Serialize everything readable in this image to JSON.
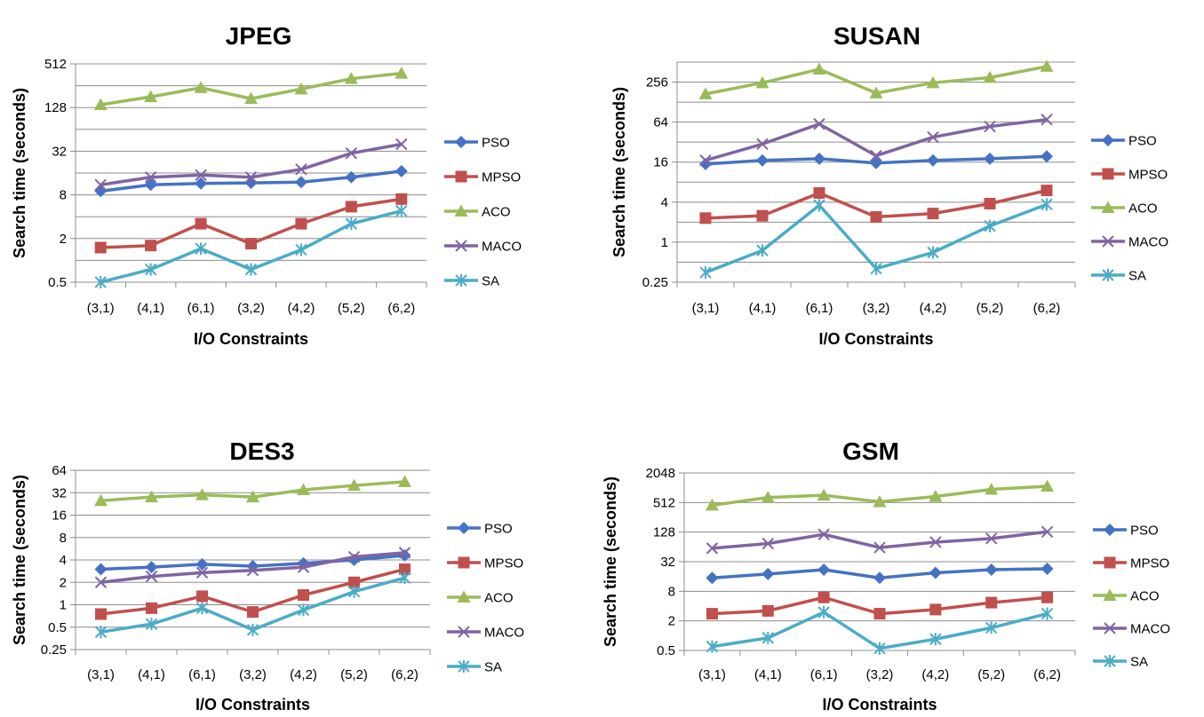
{
  "chart_data": [
    {
      "type": "line",
      "title": "JPEG",
      "xlabel": "I/O Constraints",
      "ylabel": "Search time (seconds)",
      "yscale": "log2",
      "ylim": [
        0.5,
        512
      ],
      "yticks": [
        "0.5",
        "2",
        "8",
        "32",
        "128",
        "512"
      ],
      "yticks_values": [
        0.5,
        2,
        8,
        32,
        128,
        512
      ],
      "minor_gridlines": [
        1,
        4,
        16,
        64,
        256
      ],
      "grid": true,
      "legend": "right",
      "categories": [
        "(3,1)",
        "(4,1)",
        "(6,1)",
        "(3,2)",
        "(4,2)",
        "(5,2)",
        "(6,2)"
      ],
      "series": [
        {
          "name": "PSO",
          "values": [
            9,
            11,
            11.5,
            11.7,
            12,
            14,
            17
          ]
        },
        {
          "name": "MPSO",
          "values": [
            1.5,
            1.6,
            3.2,
            1.7,
            3.2,
            5.5,
            7
          ]
        },
        {
          "name": "ACO",
          "values": [
            140,
            180,
            240,
            170,
            230,
            320,
            380
          ]
        },
        {
          "name": "MACO",
          "values": [
            11,
            14,
            15,
            14,
            18,
            30,
            40
          ]
        },
        {
          "name": "SA",
          "values": [
            0.5,
            0.75,
            1.45,
            0.75,
            1.4,
            3.2,
            4.8
          ]
        }
      ]
    },
    {
      "type": "line",
      "title": "SUSAN",
      "xlabel": "I/O Constraints",
      "ylabel": "Search time (seconds)",
      "yscale": "log2",
      "ylim": [
        0.25,
        512
      ],
      "yticks": [
        "0.25",
        "1",
        "4",
        "16",
        "64",
        "256"
      ],
      "yticks_values": [
        0.25,
        1,
        4,
        16,
        64,
        256
      ],
      "minor_gridlines": [
        0.5,
        2,
        8,
        32,
        128,
        512
      ],
      "grid": true,
      "legend": "right",
      "categories": [
        "(3,1)",
        "(4,1)",
        "(6,1)",
        "(3,2)",
        "(4,2)",
        "(5,2)",
        "(6,2)"
      ],
      "series": [
        {
          "name": "PSO",
          "values": [
            15,
            17,
            18,
            15.5,
            17,
            18,
            19.5
          ]
        },
        {
          "name": "MPSO",
          "values": [
            2.3,
            2.5,
            5.5,
            2.4,
            2.7,
            3.8,
            6
          ]
        },
        {
          "name": "ACO",
          "values": [
            170,
            250,
            400,
            175,
            250,
            300,
            440
          ]
        },
        {
          "name": "MACO",
          "values": [
            17,
            30,
            60,
            20,
            38,
            55,
            70
          ]
        },
        {
          "name": "SA",
          "values": [
            0.35,
            0.75,
            3.6,
            0.4,
            0.7,
            1.75,
            3.7
          ]
        }
      ]
    },
    {
      "type": "line",
      "title": "DES3",
      "xlabel": "I/O Constraints",
      "ylabel": "Search time (seconds)",
      "yscale": "log2",
      "ylim": [
        0.25,
        64
      ],
      "yticks": [
        "0.25",
        "0.5",
        "1",
        "2",
        "4",
        "8",
        "16",
        "32",
        "64"
      ],
      "yticks_values": [
        0.25,
        0.5,
        1,
        2,
        4,
        8,
        16,
        32,
        64
      ],
      "minor_gridlines": [],
      "grid": true,
      "legend": "right",
      "categories": [
        "(3,1)",
        "(4,1)",
        "(6,1)",
        "(3,2)",
        "(4,2)",
        "(5,2)",
        "(6,2)"
      ],
      "series": [
        {
          "name": "PSO",
          "values": [
            3,
            3.2,
            3.5,
            3.3,
            3.6,
            4,
            4.6
          ]
        },
        {
          "name": "MPSO",
          "values": [
            0.75,
            0.9,
            1.3,
            0.8,
            1.35,
            2,
            3
          ]
        },
        {
          "name": "ACO",
          "values": [
            25,
            28,
            30,
            28,
            35,
            40,
            45
          ]
        },
        {
          "name": "MACO",
          "values": [
            2,
            2.4,
            2.7,
            2.9,
            3.2,
            4.4,
            5
          ]
        },
        {
          "name": "SA",
          "values": [
            0.43,
            0.55,
            0.9,
            0.46,
            0.85,
            1.5,
            2.3
          ]
        }
      ]
    },
    {
      "type": "line",
      "title": "GSM",
      "xlabel": "I/O Constraints",
      "ylabel": "Search time (seconds)",
      "yscale": "log2",
      "ylim": [
        0.5,
        2048
      ],
      "yticks": [
        "0.5",
        "2",
        "8",
        "32",
        "128",
        "512",
        "2048"
      ],
      "yticks_values": [
        0.5,
        2,
        8,
        32,
        128,
        512,
        2048
      ],
      "minor_gridlines": [],
      "grid": true,
      "legend": "right",
      "categories": [
        "(3,1)",
        "(4,1)",
        "(6,1)",
        "(3,2)",
        "(4,2)",
        "(5,2)",
        "(6,2)"
      ],
      "series": [
        {
          "name": "PSO",
          "values": [
            15,
            18,
            22,
            15,
            19,
            22,
            23
          ]
        },
        {
          "name": "MPSO",
          "values": [
            2.8,
            3.2,
            6,
            2.8,
            3.4,
            4.7,
            6
          ]
        },
        {
          "name": "ACO",
          "values": [
            450,
            650,
            720,
            530,
            680,
            950,
            1100
          ]
        },
        {
          "name": "MACO",
          "values": [
            60,
            75,
            115,
            62,
            80,
            95,
            130
          ]
        },
        {
          "name": "SA",
          "values": [
            0.6,
            0.9,
            3,
            0.55,
            0.85,
            1.45,
            2.8
          ]
        }
      ]
    }
  ],
  "series_styles": {
    "PSO": {
      "color": "#4472C4",
      "marker": "diamond"
    },
    "MPSO": {
      "color": "#C0504D",
      "marker": "square"
    },
    "ACO": {
      "color": "#9BBB59",
      "marker": "triangle"
    },
    "MACO": {
      "color": "#8064A2",
      "marker": "x"
    },
    "SA": {
      "color": "#4BACC6",
      "marker": "star"
    }
  }
}
